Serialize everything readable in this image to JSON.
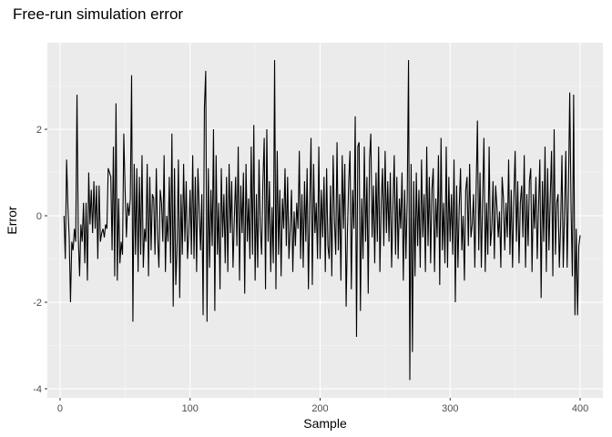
{
  "chart_data": {
    "type": "line",
    "title": "Free-run simulation error",
    "x_label": "Sample",
    "y_label": "Error",
    "xlim": [
      -9.8,
      417.5
    ],
    "ylim": [
      -4.21,
      4.0
    ],
    "xticks": [
      0,
      100,
      200,
      300,
      400
    ],
    "yticks": [
      -4,
      -2,
      0,
      2
    ],
    "grid": true,
    "series": [
      {
        "color": "#000000",
        "x": [
          3,
          4,
          5,
          6,
          7,
          8,
          9,
          10,
          11,
          12,
          13,
          14,
          15,
          16,
          17,
          18,
          19,
          20,
          21,
          22,
          23,
          24,
          25,
          26,
          27,
          28,
          29,
          30,
          31,
          32,
          33,
          34,
          35,
          36,
          37,
          38,
          39,
          40,
          41,
          42,
          43,
          44,
          45,
          46,
          47,
          48,
          49,
          50,
          51,
          52,
          53,
          54,
          55,
          56,
          57,
          58,
          59,
          60,
          61,
          62,
          63,
          64,
          65,
          66,
          67,
          68,
          69,
          70,
          71,
          72,
          73,
          74,
          75,
          76,
          77,
          78,
          79,
          80,
          81,
          82,
          83,
          84,
          85,
          86,
          87,
          88,
          89,
          90,
          91,
          92,
          93,
          94,
          95,
          96,
          97,
          98,
          99,
          100,
          101,
          102,
          103,
          104,
          105,
          106,
          107,
          108,
          109,
          110,
          111,
          112,
          113,
          114,
          115,
          116,
          117,
          118,
          119,
          120,
          121,
          122,
          123,
          124,
          125,
          126,
          127,
          128,
          129,
          130,
          131,
          132,
          133,
          134,
          135,
          136,
          137,
          138,
          139,
          140,
          141,
          142,
          143,
          144,
          145,
          146,
          147,
          148,
          149,
          150,
          151,
          152,
          153,
          154,
          155,
          156,
          157,
          158,
          159,
          160,
          161,
          162,
          163,
          164,
          165,
          166,
          167,
          168,
          169,
          170,
          171,
          172,
          173,
          174,
          175,
          176,
          177,
          178,
          179,
          180,
          181,
          182,
          183,
          184,
          185,
          186,
          187,
          188,
          189,
          190,
          191,
          192,
          193,
          194,
          195,
          196,
          197,
          198,
          199,
          200,
          201,
          202,
          203,
          204,
          205,
          206,
          207,
          208,
          209,
          210,
          211,
          212,
          213,
          214,
          215,
          216,
          217,
          218,
          219,
          220,
          221,
          222,
          223,
          224,
          225,
          226,
          227,
          228,
          229,
          230,
          231,
          232,
          233,
          234,
          235,
          236,
          237,
          238,
          239,
          240,
          241,
          242,
          243,
          244,
          245,
          246,
          247,
          248,
          249,
          250,
          251,
          252,
          253,
          254,
          255,
          256,
          257,
          258,
          259,
          260,
          261,
          262,
          263,
          264,
          265,
          266,
          267,
          268,
          269,
          270,
          271,
          272,
          273,
          274,
          275,
          276,
          277,
          278,
          279,
          280,
          281,
          282,
          283,
          284,
          285,
          286,
          287,
          288,
          289,
          290,
          291,
          292,
          293,
          294,
          295,
          296,
          297,
          298,
          299,
          300,
          301,
          302,
          303,
          304,
          305,
          306,
          307,
          308,
          309,
          310,
          311,
          312,
          313,
          314,
          315,
          316,
          317,
          318,
          319,
          320,
          321,
          322,
          323,
          324,
          325,
          326,
          327,
          328,
          329,
          330,
          331,
          332,
          333,
          334,
          335,
          336,
          337,
          338,
          339,
          340,
          341,
          342,
          343,
          344,
          345,
          346,
          347,
          348,
          349,
          350,
          351,
          352,
          353,
          354,
          355,
          356,
          357,
          358,
          359,
          360,
          361,
          362,
          363,
          364,
          365,
          366,
          367,
          368,
          369,
          370,
          371,
          372,
          373,
          374,
          375,
          376,
          377,
          378,
          379,
          380,
          381,
          382,
          383,
          384,
          385,
          386,
          387,
          388,
          389,
          390,
          391,
          392,
          393,
          394,
          395,
          396,
          397,
          398,
          399,
          400
        ],
        "values": [
          0,
          -1.0,
          1.3,
          0.2,
          -0.5,
          -2.0,
          -0.6,
          -0.8,
          -0.3,
          -0.6,
          2.8,
          -0.5,
          -1.4,
          -0.2,
          -0.6,
          0.3,
          -1.1,
          0.3,
          -1.5,
          1.0,
          -0.2,
          0.6,
          -0.4,
          0.8,
          -0.3,
          0.7,
          -1.0,
          0.7,
          -0.6,
          -0.4,
          -0.3,
          -0.5,
          -0.2,
          -0.3,
          1.1,
          1.0,
          0.9,
          -0.8,
          1.6,
          -1.4,
          2.6,
          -1.5,
          0.4,
          -1.1,
          -0.6,
          -0.9,
          1.9,
          0.6,
          -0.5,
          0.3,
          0.0,
          0.4,
          3.25,
          -2.45,
          1.2,
          -0.9,
          1.1,
          -1.3,
          0.9,
          -0.9,
          1.4,
          -1.2,
          -0.3,
          -0.6,
          1.2,
          -1.4,
          0.9,
          -0.8,
          0.5,
          0.4,
          -0.9,
          1.1,
          -0.5,
          -1.2,
          0.6,
          0.3,
          -0.6,
          1.4,
          -1.3,
          0.0,
          -0.6,
          0.9,
          -1.1,
          1.9,
          -2.1,
          1.1,
          -1.6,
          -0.7,
          1.3,
          -1.9,
          0.5,
          -0.9,
          1.2,
          -0.6,
          0.8,
          -1.0,
          -0.4,
          0.6,
          -0.9,
          1.4,
          -1.0,
          0.9,
          -1.3,
          1.1,
          0.1,
          -0.8,
          0.5,
          -2.3,
          2.5,
          3.35,
          -2.45,
          1.1,
          -1.2,
          0.6,
          -0.7,
          2.0,
          -2.2,
          1.4,
          -0.9,
          0.3,
          -1.7,
          1.1,
          -0.5,
          0.5,
          -1.1,
          0.9,
          -1.3,
          1.2,
          -0.4,
          0.8,
          -1.2,
          -0.1,
          0.9,
          -0.7,
          1.6,
          -1.5,
          0.7,
          -0.4,
          1.0,
          -1.8,
          1.2,
          -0.6,
          0.4,
          -1.0,
          1.6,
          -0.9,
          2.1,
          -1.5,
          0.5,
          -1.2,
          1.3,
          -0.3,
          -0.9,
          0.8,
          1.8,
          -1.7,
          2.0,
          -0.6,
          0.8,
          -1.3,
          0.2,
          -1.1,
          3.6,
          -1.7,
          1.5,
          -0.9,
          0.6,
          -1.4,
          0.4,
          -0.3,
          1.1,
          -0.7,
          0.9,
          -1.0,
          -0.3,
          0.6,
          -1.3,
          0.1,
          -0.7,
          0.3,
          -0.3,
          1.5,
          -1.0,
          0.5,
          -1.2,
          0.8,
          -0.6,
          1.1,
          -1.7,
          0.2,
          1.8,
          -1.6,
          1.2,
          -0.4,
          0.3,
          -1.0,
          1.6,
          -1.0,
          0.6,
          -0.5,
          0.9,
          -1.3,
          1.1,
          -0.7,
          -1.0,
          0.7,
          -1.4,
          1.4,
          -0.1,
          -0.9,
          1.7,
          -0.8,
          0.5,
          -1.5,
          1.4,
          -0.3,
          1.2,
          -2.1,
          -0.4,
          0.8,
          1.5,
          -1.7,
          0.6,
          -0.3,
          2.3,
          -2.8,
          1.6,
          1.7,
          -2.2,
          0.4,
          -1.0,
          1.6,
          -0.6,
          0.9,
          -1.8,
          1.3,
          1.9,
          -0.5,
          0.7,
          -1.1,
          1.0,
          -0.6,
          1.6,
          -1.3,
          0.3,
          1.1,
          -0.7,
          1.5,
          -0.4,
          0.8,
          -0.6,
          1.0,
          -1.2,
          0.2,
          1.4,
          -0.9,
          0.9,
          -1.0,
          0.4,
          -0.3,
          1.0,
          -1.5,
          0.6,
          -1.0,
          0.4,
          3.6,
          -3.8,
          1.2,
          -3.15,
          0.8,
          -1.4,
          1.0,
          -0.7,
          0.6,
          -1.2,
          1.3,
          -0.5,
          0.5,
          -1.3,
          1.6,
          -0.7,
          0.9,
          -1.1,
          0.6,
          1.1,
          -1.3,
          0.4,
          -0.5,
          1.4,
          -1.6,
          1.8,
          -0.8,
          0.3,
          -1.1,
          1.6,
          -1.2,
          0.9,
          -0.6,
          0.5,
          -0.9,
          1.3,
          -2.0,
          0.7,
          -1.2,
          0.2,
          1.1,
          -0.8,
          0.0,
          -1.5,
          0.6,
          0.9,
          -0.7,
          1.2,
          -0.5,
          -0.2,
          0.5,
          -1.2,
          0.6,
          2.2,
          -0.8,
          1.0,
          -1.2,
          0.4,
          1.8,
          -1.3,
          0.3,
          -0.9,
          1.6,
          -0.7,
          -0.3,
          0.8,
          -1.0,
          0.7,
          0.2,
          -0.5,
          0.1,
          -1.2,
          0.9,
          0.4,
          -0.8,
          0.3,
          -0.5,
          1.3,
          -0.9,
          0.6,
          -1.2,
          0.4,
          1.5,
          -0.6,
          0.8,
          -1.1,
          0.3,
          0.7,
          -0.5,
          1.4,
          -1.2,
          0.5,
          -0.7,
          0.8,
          1.1,
          -1.3,
          0.5,
          -0.3,
          0.9,
          -1.0,
          0.2,
          1.3,
          -1.9,
          0.8,
          -0.6,
          1.6,
          -1.3,
          1.1,
          -0.8,
          0.4,
          1.5,
          -1.4,
          2.0,
          -0.9,
          0.3,
          0.5,
          -1.2,
          -0.2,
          1.4,
          -1.2,
          0.1,
          1.5,
          -1.2,
          0.6,
          2.85,
          0.2,
          -1.4,
          2.8,
          -2.3,
          -0.3,
          -2.3,
          -0.7,
          -0.45
        ]
      }
    ]
  }
}
